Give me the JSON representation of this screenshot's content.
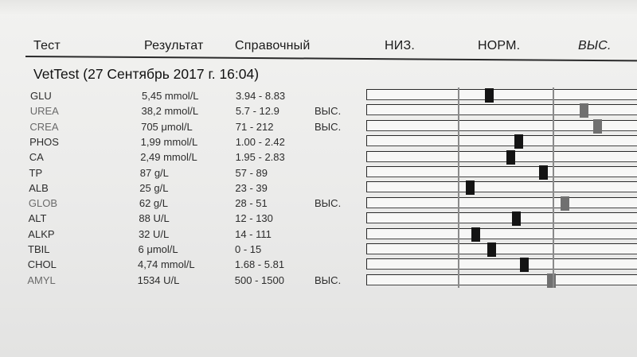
{
  "header": {
    "test_label": "Тест",
    "result_label": "Результат",
    "reference_label": "Справочный",
    "low_label": "НИЗ.",
    "normal_label": "НОРМ.",
    "high_label": "ВЫС."
  },
  "title": "VetTest (27 Сентябрь 2017 г. 16:04)",
  "rows": [
    {
      "test": "GLU",
      "result": "5,45 mmol/L",
      "reference": "3.94 - 8.83",
      "flag": "",
      "marker_position": 0.45,
      "grey": false
    },
    {
      "test": "UREA",
      "result": "38,2 mmol/L",
      "reference": "5.7 - 12.9",
      "flag": "ВЫС.",
      "marker_position": 0.8,
      "grey": true
    },
    {
      "test": "CREA",
      "result": "705 μmol/L",
      "reference": "71 - 212",
      "flag": "ВЫС.",
      "marker_position": 0.85,
      "grey": true
    },
    {
      "test": "PHOS",
      "result": "1,99 mmol/L",
      "reference": "1.00 - 2.42",
      "flag": "",
      "marker_position": 0.56,
      "grey": false
    },
    {
      "test": "CA",
      "result": "2,49 mmol/L",
      "reference": "1.95 - 2.83",
      "flag": "",
      "marker_position": 0.53,
      "grey": false
    },
    {
      "test": "TP",
      "result": "87 g/L",
      "reference": "57 - 89",
      "flag": "",
      "marker_position": 0.65,
      "grey": false
    },
    {
      "test": "ALB",
      "result": "25 g/L",
      "reference": "23 - 39",
      "flag": "",
      "marker_position": 0.38,
      "grey": false
    },
    {
      "test": "GLOB",
      "result": "62 g/L",
      "reference": "28 - 51",
      "flag": "ВЫС.",
      "marker_position": 0.73,
      "grey": true
    },
    {
      "test": "ALT",
      "result": "88 U/L",
      "reference": "12 - 130",
      "flag": "",
      "marker_position": 0.55,
      "grey": false
    },
    {
      "test": "ALKP",
      "result": "32 U/L",
      "reference": "14 - 111",
      "flag": "",
      "marker_position": 0.4,
      "grey": false
    },
    {
      "test": "TBIL",
      "result": "6 μmol/L",
      "reference": "0 - 15",
      "flag": "",
      "marker_position": 0.46,
      "grey": false
    },
    {
      "test": "CHOL",
      "result": "4,74 mmol/L",
      "reference": "1.68 - 5.81",
      "flag": "",
      "marker_position": 0.58,
      "grey": false
    },
    {
      "test": "AMYL",
      "result": "1534 U/L",
      "reference": "500 - 1500",
      "flag": "ВЫС.",
      "marker_position": 0.68,
      "grey": true
    }
  ],
  "colors": {
    "paper": "#efefee",
    "text": "#2c2c2c",
    "marker": "#141414",
    "marker_high": "#707070",
    "divider": "#8a8a8a"
  }
}
